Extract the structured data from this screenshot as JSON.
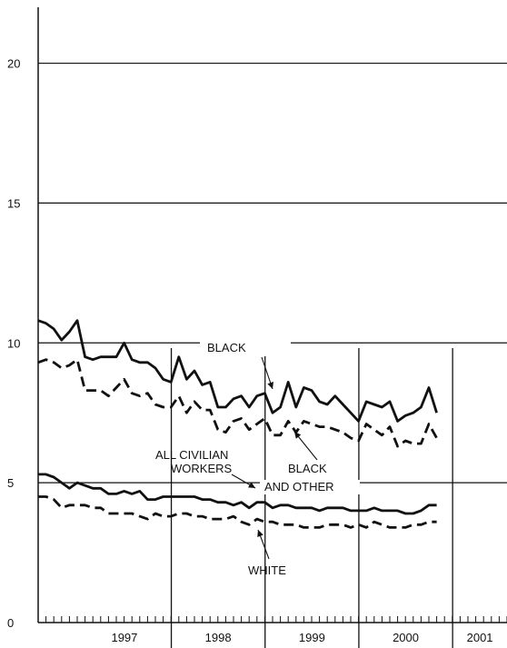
{
  "chart_data": {
    "type": "line",
    "title": "",
    "xlabel": "",
    "ylabel": "",
    "ylim": [
      0,
      22
    ],
    "x_range": [
      1996.58,
      2001.58
    ],
    "yticks": [
      0,
      5,
      10,
      15,
      20
    ],
    "year_labels": [
      "1997",
      "1998",
      "1999",
      "2000",
      "2001"
    ],
    "grid": "horizontal",
    "annotations": [
      "BLACK",
      "ALL CIVILIAN WORKERS",
      "BLACK AND OTHER",
      "WHITE"
    ],
    "series": [
      {
        "name": "BLACK",
        "style": "solid",
        "values": [
          10.8,
          10.7,
          10.5,
          10.1,
          10.4,
          10.8,
          9.5,
          9.4,
          9.5,
          9.5,
          9.5,
          10.0,
          9.4,
          9.3,
          9.3,
          9.1,
          8.7,
          8.6,
          9.5,
          8.7,
          9.0,
          8.5,
          8.6,
          7.7,
          7.7,
          8.0,
          8.1,
          7.7,
          8.1,
          8.2,
          7.5,
          7.7,
          8.6,
          7.7,
          8.4,
          8.3,
          7.9,
          7.8,
          8.1,
          7.8,
          7.5,
          7.2,
          7.9,
          7.8,
          7.7,
          7.9,
          7.2,
          7.4,
          7.5,
          7.7,
          8.4,
          7.5
        ]
      },
      {
        "name": "BLACK AND OTHER",
        "style": "dashed",
        "values": [
          9.3,
          9.4,
          9.3,
          9.1,
          9.2,
          9.4,
          8.3,
          8.3,
          8.3,
          8.1,
          8.4,
          8.7,
          8.2,
          8.1,
          8.2,
          7.8,
          7.7,
          7.7,
          8.1,
          7.5,
          7.9,
          7.6,
          7.6,
          6.9,
          6.8,
          7.2,
          7.3,
          6.9,
          7.1,
          7.3,
          6.7,
          6.7,
          7.2,
          6.8,
          7.2,
          7.1,
          7.0,
          7.0,
          6.9,
          6.8,
          6.6,
          6.5,
          7.1,
          6.9,
          6.7,
          7.0,
          6.3,
          6.5,
          6.4,
          6.4,
          7.1,
          6.6
        ]
      },
      {
        "name": "ALL CIVILIAN WORKERS",
        "style": "solid",
        "values": [
          5.3,
          5.3,
          5.2,
          5.0,
          4.8,
          5.0,
          4.9,
          4.8,
          4.8,
          4.6,
          4.6,
          4.7,
          4.6,
          4.7,
          4.4,
          4.4,
          4.5,
          4.5,
          4.5,
          4.5,
          4.5,
          4.4,
          4.4,
          4.3,
          4.3,
          4.2,
          4.3,
          4.1,
          4.3,
          4.3,
          4.1,
          4.2,
          4.2,
          4.1,
          4.1,
          4.1,
          4.0,
          4.1,
          4.1,
          4.1,
          4.0,
          4.0,
          4.0,
          4.1,
          4.0,
          4.0,
          4.0,
          3.9,
          3.9,
          4.0,
          4.2,
          4.2
        ]
      },
      {
        "name": "WHITE",
        "style": "dashed",
        "values": [
          4.5,
          4.5,
          4.4,
          4.1,
          4.2,
          4.2,
          4.2,
          4.1,
          4.1,
          3.9,
          3.9,
          3.9,
          3.9,
          3.8,
          3.7,
          3.9,
          3.8,
          3.8,
          3.9,
          3.9,
          3.8,
          3.8,
          3.7,
          3.7,
          3.7,
          3.8,
          3.6,
          3.5,
          3.7,
          3.6,
          3.6,
          3.5,
          3.5,
          3.5,
          3.4,
          3.4,
          3.4,
          3.5,
          3.5,
          3.5,
          3.4,
          3.5,
          3.4,
          3.6,
          3.5,
          3.4,
          3.4,
          3.4,
          3.5,
          3.5,
          3.6,
          3.6
        ]
      }
    ]
  }
}
